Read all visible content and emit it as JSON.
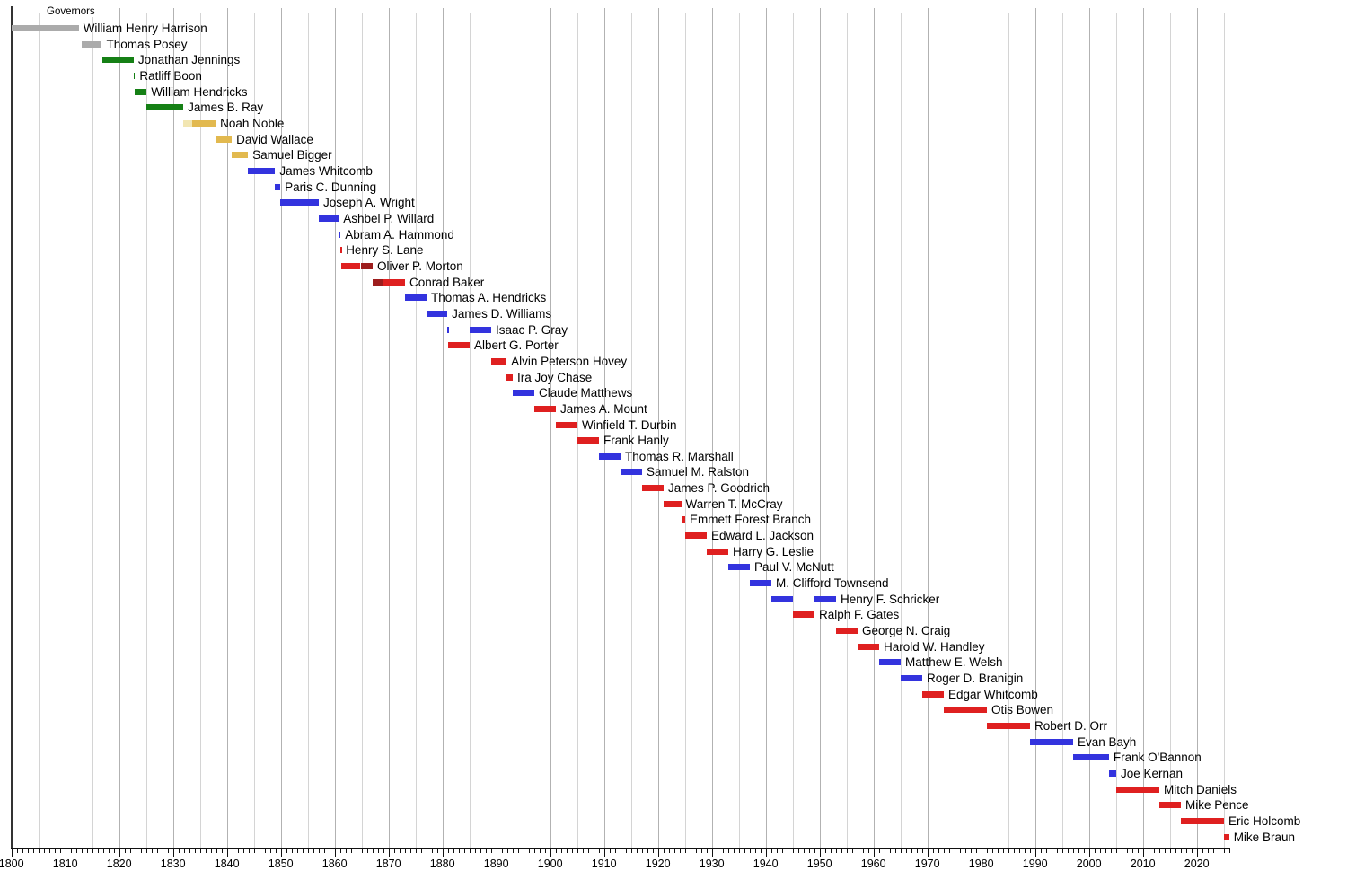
{
  "chart_data": {
    "type": "timeline",
    "title": "Governors",
    "axis": {
      "min_year": 1800,
      "max_year": 2026,
      "grid_step_years": 5,
      "minor_tick_step_years": 1,
      "tick_labels": [
        "1800",
        "1810",
        "1820",
        "1830",
        "1840",
        "1850",
        "1860",
        "1870",
        "1880",
        "1890",
        "1900",
        "1910",
        "1920",
        "1930",
        "1940",
        "1950",
        "1960",
        "1970",
        "1980",
        "1990",
        "2000",
        "2010",
        "2020"
      ]
    },
    "party_colors": {
      "territorial": "#ABABAB",
      "democratic_republican": "#158015",
      "national_republican": "#F2E6B2",
      "whig": "#E2B94F",
      "democratic": "#3333DE",
      "republican": "#DF2020",
      "national_union": "#9D1D1D"
    },
    "governors": [
      {
        "name": "William Henry Harrison",
        "segments": [
          {
            "start": 1800.0,
            "end": 1812.5,
            "party": "territorial"
          }
        ]
      },
      {
        "name": "Thomas Posey",
        "segments": [
          {
            "start": 1813.0,
            "end": 1816.8,
            "party": "territorial"
          }
        ]
      },
      {
        "name": "Jonathan Jennings",
        "segments": [
          {
            "start": 1816.9,
            "end": 1822.7,
            "party": "democratic_republican"
          }
        ]
      },
      {
        "name": "Ratliff Boon",
        "segments": [
          {
            "start": 1822.7,
            "end": 1822.95,
            "party": "democratic_republican"
          }
        ]
      },
      {
        "name": "William Hendricks",
        "segments": [
          {
            "start": 1822.95,
            "end": 1825.1,
            "party": "democratic_republican"
          }
        ]
      },
      {
        "name": "James B. Ray",
        "segments": [
          {
            "start": 1825.1,
            "end": 1831.9,
            "party": "democratic_republican"
          }
        ]
      },
      {
        "name": "Noah Noble",
        "segments": [
          {
            "start": 1831.9,
            "end": 1833.5,
            "party": "national_republican"
          },
          {
            "start": 1833.5,
            "end": 1837.9,
            "party": "whig"
          }
        ]
      },
      {
        "name": "David Wallace",
        "segments": [
          {
            "start": 1837.9,
            "end": 1840.9,
            "party": "whig"
          }
        ]
      },
      {
        "name": "Samuel Bigger",
        "segments": [
          {
            "start": 1840.9,
            "end": 1843.9,
            "party": "whig"
          }
        ]
      },
      {
        "name": "James Whitcomb",
        "segments": [
          {
            "start": 1843.9,
            "end": 1848.95,
            "party": "democratic"
          }
        ]
      },
      {
        "name": "Paris C. Dunning",
        "segments": [
          {
            "start": 1848.95,
            "end": 1849.9,
            "party": "democratic"
          }
        ]
      },
      {
        "name": "Joseph A. Wright",
        "segments": [
          {
            "start": 1849.9,
            "end": 1857.05,
            "party": "democratic"
          }
        ]
      },
      {
        "name": "Ashbel P. Willard",
        "segments": [
          {
            "start": 1857.05,
            "end": 1860.75,
            "party": "democratic"
          }
        ]
      },
      {
        "name": "Abram A. Hammond",
        "segments": [
          {
            "start": 1860.75,
            "end": 1861.1,
            "party": "democratic"
          }
        ]
      },
      {
        "name": "Henry S. Lane",
        "segments": [
          {
            "start": 1861.1,
            "end": 1861.25,
            "party": "republican"
          }
        ]
      },
      {
        "name": "Oliver P. Morton",
        "segments": [
          {
            "start": 1861.15,
            "end": 1864.8,
            "party": "republican"
          },
          {
            "start": 1864.8,
            "end": 1867.05,
            "party": "national_union"
          }
        ]
      },
      {
        "name": "Conrad Baker",
        "segments": [
          {
            "start": 1867.05,
            "end": 1869.0,
            "party": "national_union"
          },
          {
            "start": 1869.0,
            "end": 1873.05,
            "party": "republican"
          }
        ]
      },
      {
        "name": "Thomas A. Hendricks",
        "segments": [
          {
            "start": 1873.05,
            "end": 1877.05,
            "party": "democratic"
          }
        ]
      },
      {
        "name": "James D. Williams",
        "segments": [
          {
            "start": 1877.05,
            "end": 1880.9,
            "party": "democratic"
          }
        ]
      },
      {
        "name": "Isaac P. Gray",
        "segments": [
          {
            "start": 1880.9,
            "end": 1881.05,
            "party": "democratic"
          },
          {
            "start": 1885.05,
            "end": 1889.05,
            "party": "democratic"
          }
        ]
      },
      {
        "name": "Albert G. Porter",
        "segments": [
          {
            "start": 1881.05,
            "end": 1885.05,
            "party": "republican"
          }
        ]
      },
      {
        "name": "Alvin Peterson Hovey",
        "segments": [
          {
            "start": 1889.05,
            "end": 1891.9,
            "party": "republican"
          }
        ]
      },
      {
        "name": "Ira Joy Chase",
        "segments": [
          {
            "start": 1891.9,
            "end": 1893.05,
            "party": "republican"
          }
        ]
      },
      {
        "name": "Claude Matthews",
        "segments": [
          {
            "start": 1893.05,
            "end": 1897.05,
            "party": "democratic"
          }
        ]
      },
      {
        "name": "James A. Mount",
        "segments": [
          {
            "start": 1897.05,
            "end": 1901.05,
            "party": "republican"
          }
        ]
      },
      {
        "name": "Winfield T. Durbin",
        "segments": [
          {
            "start": 1901.05,
            "end": 1905.05,
            "party": "republican"
          }
        ]
      },
      {
        "name": "Frank Hanly",
        "segments": [
          {
            "start": 1905.05,
            "end": 1909.05,
            "party": "republican"
          }
        ]
      },
      {
        "name": "Thomas R. Marshall",
        "segments": [
          {
            "start": 1909.05,
            "end": 1913.05,
            "party": "democratic"
          }
        ]
      },
      {
        "name": "Samuel M. Ralston",
        "segments": [
          {
            "start": 1913.05,
            "end": 1917.05,
            "party": "democratic"
          }
        ]
      },
      {
        "name": "James P. Goodrich",
        "segments": [
          {
            "start": 1917.05,
            "end": 1921.05,
            "party": "republican"
          }
        ]
      },
      {
        "name": "Warren T. McCray",
        "segments": [
          {
            "start": 1921.05,
            "end": 1924.3,
            "party": "republican"
          }
        ]
      },
      {
        "name": "Emmett Forest Branch",
        "segments": [
          {
            "start": 1924.3,
            "end": 1925.05,
            "party": "republican"
          }
        ]
      },
      {
        "name": "Edward L. Jackson",
        "segments": [
          {
            "start": 1925.05,
            "end": 1929.05,
            "party": "republican"
          }
        ]
      },
      {
        "name": "Harry G. Leslie",
        "segments": [
          {
            "start": 1929.05,
            "end": 1933.05,
            "party": "republican"
          }
        ]
      },
      {
        "name": "Paul V. McNutt",
        "segments": [
          {
            "start": 1933.05,
            "end": 1937.05,
            "party": "democratic"
          }
        ]
      },
      {
        "name": "M. Clifford Townsend",
        "segments": [
          {
            "start": 1937.05,
            "end": 1941.05,
            "party": "democratic"
          }
        ]
      },
      {
        "name": "Henry F. Schricker",
        "segments": [
          {
            "start": 1941.05,
            "end": 1945.05,
            "party": "democratic"
          },
          {
            "start": 1949.05,
            "end": 1953.05,
            "party": "democratic"
          }
        ]
      },
      {
        "name": "Ralph F. Gates",
        "segments": [
          {
            "start": 1945.05,
            "end": 1949.05,
            "party": "republican"
          }
        ]
      },
      {
        "name": "George N. Craig",
        "segments": [
          {
            "start": 1953.05,
            "end": 1957.05,
            "party": "republican"
          }
        ]
      },
      {
        "name": "Harold W. Handley",
        "segments": [
          {
            "start": 1957.05,
            "end": 1961.05,
            "party": "republican"
          }
        ]
      },
      {
        "name": "Matthew E. Welsh",
        "segments": [
          {
            "start": 1961.05,
            "end": 1965.05,
            "party": "democratic"
          }
        ]
      },
      {
        "name": "Roger D. Branigin",
        "segments": [
          {
            "start": 1965.05,
            "end": 1969.05,
            "party": "democratic"
          }
        ]
      },
      {
        "name": "Edgar Whitcomb",
        "segments": [
          {
            "start": 1969.05,
            "end": 1973.05,
            "party": "republican"
          }
        ]
      },
      {
        "name": "Otis Bowen",
        "segments": [
          {
            "start": 1973.05,
            "end": 1981.05,
            "party": "republican"
          }
        ]
      },
      {
        "name": "Robert D. Orr",
        "segments": [
          {
            "start": 1981.05,
            "end": 1989.05,
            "party": "republican"
          }
        ]
      },
      {
        "name": "Evan Bayh",
        "segments": [
          {
            "start": 1989.05,
            "end": 1997.05,
            "party": "democratic"
          }
        ]
      },
      {
        "name": "Frank O'Bannon",
        "segments": [
          {
            "start": 1997.05,
            "end": 2003.7,
            "party": "democratic"
          }
        ]
      },
      {
        "name": "Joe Kernan",
        "segments": [
          {
            "start": 2003.7,
            "end": 2005.05,
            "party": "democratic"
          }
        ]
      },
      {
        "name": "Mitch Daniels",
        "segments": [
          {
            "start": 2005.05,
            "end": 2013.05,
            "party": "republican"
          }
        ]
      },
      {
        "name": "Mike Pence",
        "segments": [
          {
            "start": 2013.05,
            "end": 2017.05,
            "party": "republican"
          }
        ]
      },
      {
        "name": "Eric Holcomb",
        "segments": [
          {
            "start": 2017.05,
            "end": 2025.05,
            "party": "republican"
          }
        ]
      },
      {
        "name": "Mike Braun",
        "segments": [
          {
            "start": 2025.05,
            "end": 2026.0,
            "party": "republican"
          }
        ]
      }
    ]
  }
}
